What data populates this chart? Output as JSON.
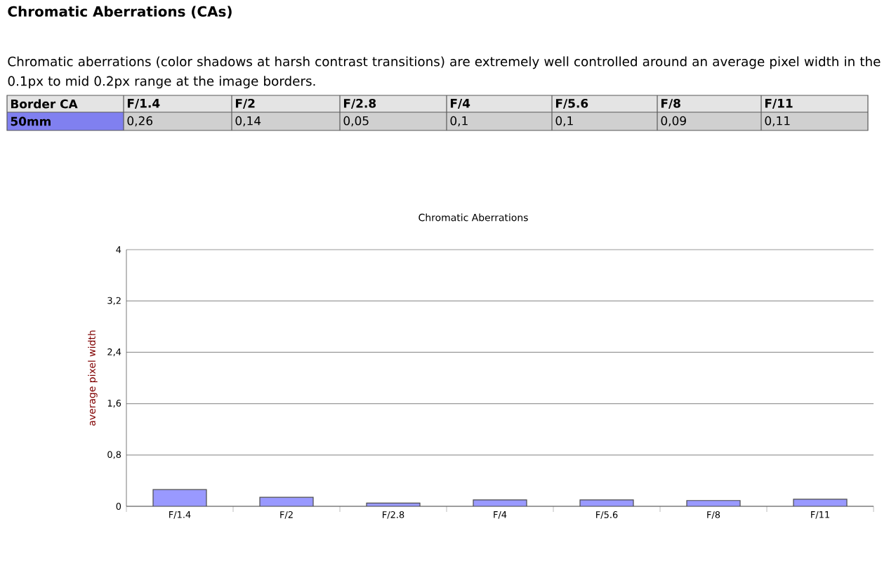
{
  "chart_data": {
    "type": "bar",
    "title": "Chromatic Aberrations (CAs)",
    "subtitle": "Chromatic aberrations (color shadows at harsh contrast transitions) are extremely well controlled around an average pixel width in the 0.1px to mid 0.2px range at the image borders.",
    "annotations": [
      "Chromatic Aberrations",
      "Border CA",
      "50mm"
    ],
    "ylabel": "average pixel width",
    "categories": [
      "F/1.4",
      "F/2",
      "F/2.8",
      "F/4",
      "F/5.6",
      "F/8",
      "F/11"
    ],
    "values": [
      0.26,
      0.14,
      0.05,
      0.1,
      0.1,
      0.09,
      0.11
    ],
    "value_labels": [
      "0,26",
      "0,14",
      "0,05",
      "0,1",
      "0,1",
      "0,09",
      "0,11"
    ],
    "color": "#9999ff",
    "ylim": [
      0,
      4
    ],
    "yticks": [
      0,
      {
        "value": 0.8,
        "label": "0,8"
      },
      {
        "value": 1.6,
        "label": "1,6"
      },
      {
        "value": 2.4,
        "label": "2,4"
      },
      {
        "value": 3.2,
        "label": "3,2"
      },
      4
    ],
    "grid": "y"
  }
}
